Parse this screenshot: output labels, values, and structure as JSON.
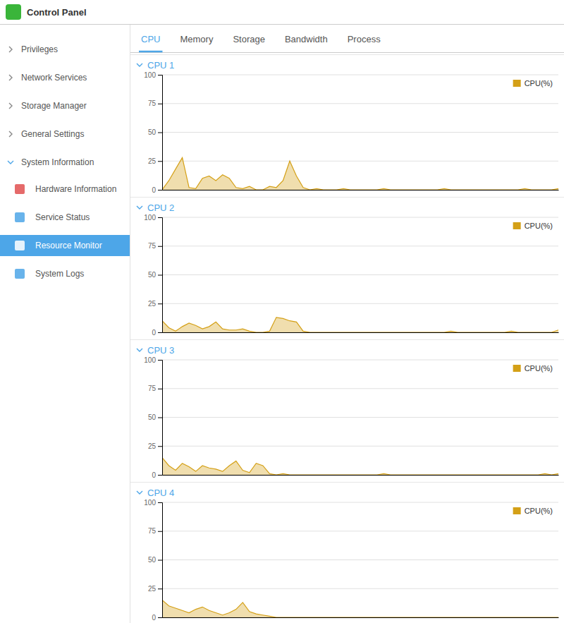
{
  "page": {
    "title": "Control Panel",
    "tabs": [
      "CPU",
      "Memory",
      "Storage",
      "Bandwidth",
      "Process"
    ],
    "active_tab": "CPU",
    "menu": [
      {
        "label": "Privileges"
      },
      {
        "label": "Network Services"
      },
      {
        "label": "Storage Manager"
      },
      {
        "label": "General Settings"
      },
      {
        "label": "System Information",
        "items": [
          "Hardware Information",
          "Service Status",
          "Resource Monitor",
          "System Logs"
        ],
        "active_item": "Resource Monitor"
      }
    ]
  },
  "chart_data": [
    {
      "type": "area",
      "title": "CPU 1",
      "x": [
        0,
        1,
        2,
        3,
        4,
        5,
        6,
        7,
        8,
        9,
        10,
        11,
        12,
        13,
        14,
        15,
        16,
        17,
        18,
        19,
        20,
        21,
        22,
        23,
        24,
        25,
        26,
        27,
        28,
        29,
        30,
        31,
        32,
        33,
        34,
        35,
        36,
        37,
        38,
        39,
        40,
        41,
        42,
        43,
        44,
        45,
        46,
        47,
        48,
        49,
        50,
        51,
        52,
        53,
        54,
        55,
        56,
        57,
        58,
        59
      ],
      "series": [
        {
          "name": "CPU(%)",
          "color": "#d4a017",
          "values": [
            0,
            8,
            18,
            28,
            2,
            1,
            10,
            12,
            8,
            13,
            10,
            2,
            1,
            3,
            0,
            0,
            3,
            2,
            8,
            25,
            12,
            2,
            0,
            1,
            0,
            0,
            0,
            1,
            0,
            0,
            0,
            0,
            0,
            1,
            0,
            0,
            0,
            0,
            0,
            0,
            0,
            0,
            1,
            0,
            0,
            0,
            0,
            0,
            0,
            0,
            0,
            0,
            0,
            0,
            1,
            0,
            0,
            0,
            0,
            1
          ]
        }
      ],
      "xlim": [
        0,
        59
      ],
      "ylim": [
        0,
        100
      ],
      "yticks": [
        0,
        25,
        50,
        75,
        100
      ],
      "grid": true,
      "legend": "upper right",
      "tick_labels": "y"
    },
    {
      "type": "area",
      "title": "CPU 2",
      "x": [
        0,
        1,
        2,
        3,
        4,
        5,
        6,
        7,
        8,
        9,
        10,
        11,
        12,
        13,
        14,
        15,
        16,
        17,
        18,
        19,
        20,
        21,
        22,
        23,
        24,
        25,
        26,
        27,
        28,
        29,
        30,
        31,
        32,
        33,
        34,
        35,
        36,
        37,
        38,
        39,
        40,
        41,
        42,
        43,
        44,
        45,
        46,
        47,
        48,
        49,
        50,
        51,
        52,
        53,
        54,
        55,
        56,
        57,
        58,
        59
      ],
      "series": [
        {
          "name": "CPU(%)",
          "color": "#d4a017",
          "values": [
            10,
            4,
            1,
            5,
            8,
            6,
            3,
            5,
            9,
            3,
            2,
            2,
            3,
            1,
            0,
            0,
            1,
            13,
            12,
            10,
            9,
            1,
            0,
            0,
            0,
            0,
            0,
            0,
            0,
            0,
            0,
            0,
            0,
            0,
            0,
            0,
            0,
            0,
            0,
            0,
            0,
            0,
            0,
            1,
            0,
            0,
            0,
            0,
            0,
            0,
            0,
            0,
            1,
            0,
            0,
            0,
            0,
            0,
            0,
            2
          ]
        }
      ],
      "xlim": [
        0,
        59
      ],
      "ylim": [
        0,
        100
      ],
      "yticks": [
        0,
        25,
        50,
        75,
        100
      ],
      "grid": true,
      "legend": "upper right",
      "tick_labels": "y"
    },
    {
      "type": "area",
      "title": "CPU 3",
      "x": [
        0,
        1,
        2,
        3,
        4,
        5,
        6,
        7,
        8,
        9,
        10,
        11,
        12,
        13,
        14,
        15,
        16,
        17,
        18,
        19,
        20,
        21,
        22,
        23,
        24,
        25,
        26,
        27,
        28,
        29,
        30,
        31,
        32,
        33,
        34,
        35,
        36,
        37,
        38,
        39,
        40,
        41,
        42,
        43,
        44,
        45,
        46,
        47,
        48,
        49,
        50,
        51,
        52,
        53,
        54,
        55,
        56,
        57,
        58,
        59
      ],
      "series": [
        {
          "name": "CPU(%)",
          "color": "#d4a017",
          "values": [
            15,
            8,
            4,
            10,
            7,
            3,
            8,
            6,
            5,
            3,
            8,
            12,
            4,
            2,
            10,
            8,
            1,
            0,
            1,
            0,
            0,
            0,
            0,
            0,
            0,
            0,
            0,
            0,
            0,
            0,
            0,
            0,
            0,
            1,
            0,
            0,
            0,
            0,
            0,
            0,
            0,
            0,
            0,
            0,
            0,
            0,
            0,
            0,
            0,
            0,
            0,
            0,
            0,
            0,
            0,
            0,
            0,
            1,
            0,
            1
          ]
        }
      ],
      "xlim": [
        0,
        59
      ],
      "ylim": [
        0,
        100
      ],
      "yticks": [
        0,
        25,
        50,
        75,
        100
      ],
      "grid": true,
      "legend": "upper right",
      "tick_labels": "y"
    },
    {
      "type": "area",
      "title": "CPU 4",
      "x": [
        0,
        1,
        2,
        3,
        4,
        5,
        6,
        7,
        8,
        9,
        10,
        11,
        12,
        13,
        14,
        15,
        16,
        17,
        18,
        19,
        20,
        21,
        22,
        23,
        24,
        25,
        26,
        27,
        28,
        29,
        30,
        31,
        32,
        33,
        34,
        35,
        36,
        37,
        38,
        39,
        40,
        41,
        42,
        43,
        44,
        45,
        46,
        47,
        48,
        49,
        50,
        51,
        52,
        53,
        54,
        55,
        56,
        57,
        58,
        59
      ],
      "series": [
        {
          "name": "CPU(%)",
          "color": "#d4a017",
          "values": [
            15,
            10,
            8,
            6,
            4,
            7,
            9,
            6,
            4,
            2,
            4,
            7,
            13,
            5,
            3,
            2,
            1,
            0,
            0,
            0,
            0,
            0,
            0,
            0,
            0,
            0,
            0,
            0,
            0,
            0,
            0,
            0,
            0,
            0,
            0,
            0,
            0,
            0,
            0,
            0,
            0,
            0,
            0,
            0,
            0,
            0,
            0,
            0,
            0,
            0,
            0,
            0,
            0,
            0,
            0,
            0,
            0,
            0,
            0,
            0
          ]
        }
      ],
      "xlim": [
        0,
        59
      ],
      "ylim": [
        0,
        100
      ],
      "yticks": [
        0,
        25,
        50,
        75,
        100
      ],
      "grid": true,
      "legend": "upper right",
      "tick_labels": "y"
    }
  ]
}
